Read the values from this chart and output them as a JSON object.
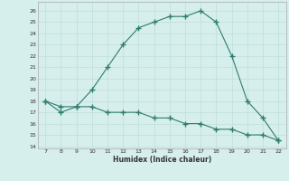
{
  "x": [
    7,
    8,
    9,
    10,
    11,
    12,
    13,
    14,
    15,
    16,
    17,
    18,
    19,
    20,
    21,
    22
  ],
  "y_upper": [
    18,
    17.5,
    17.5,
    19,
    21,
    23,
    24.5,
    25,
    25.5,
    25.5,
    26,
    25,
    22,
    18,
    16.5,
    14.5
  ],
  "y_lower": [
    18,
    17,
    17.5,
    17.5,
    17,
    17,
    17,
    16.5,
    16.5,
    16,
    16,
    15.5,
    15.5,
    15,
    15,
    14.5
  ],
  "xlim": [
    6.5,
    22.5
  ],
  "ylim": [
    13.8,
    26.8
  ],
  "yticks": [
    14,
    15,
    16,
    17,
    18,
    19,
    20,
    21,
    22,
    23,
    24,
    25,
    26
  ],
  "xticks": [
    7,
    8,
    9,
    10,
    11,
    12,
    13,
    14,
    15,
    16,
    17,
    18,
    19,
    20,
    21,
    22
  ],
  "xlabel": "Humidex (Indice chaleur)",
  "line_color": "#2e7d6e",
  "bg_color": "#d6eeec",
  "grid_color": "#b8dbd8",
  "marker": "+",
  "markersize": 4,
  "linewidth": 0.8
}
